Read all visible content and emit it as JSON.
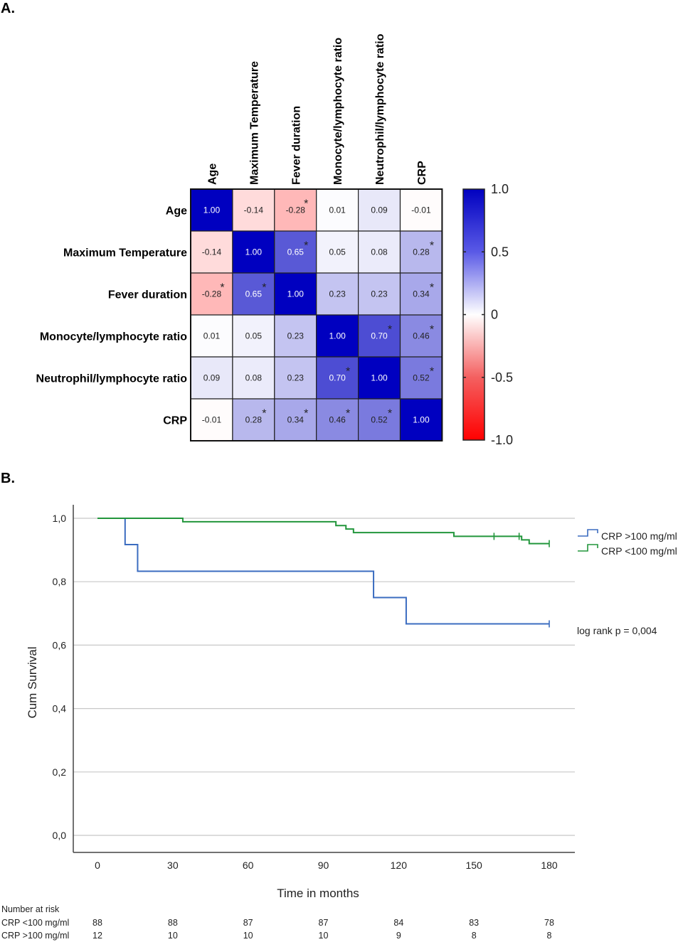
{
  "panels": {
    "a_label": "A.",
    "b_label": "B."
  },
  "chart_data": [
    {
      "type": "heatmap",
      "title": "",
      "variables": [
        "Age",
        "Maximum Temperature",
        "Fever duration",
        "Monocyte/lymphocyte ratio",
        "Neutrophil/lymphocyte ratio",
        "CRP"
      ],
      "values": [
        [
          1.0,
          -0.14,
          -0.28,
          0.01,
          0.09,
          -0.01
        ],
        [
          -0.14,
          1.0,
          0.65,
          0.05,
          0.08,
          0.28
        ],
        [
          -0.28,
          0.65,
          1.0,
          0.23,
          0.23,
          0.34
        ],
        [
          0.01,
          0.05,
          0.23,
          1.0,
          0.7,
          0.46
        ],
        [
          0.09,
          0.08,
          0.23,
          0.7,
          1.0,
          0.52
        ],
        [
          -0.01,
          0.28,
          0.34,
          0.46,
          0.52,
          1.0
        ]
      ],
      "labels": [
        [
          "1.00",
          "-0.14",
          "-0.28",
          "0.01",
          "0.09",
          "-0.01"
        ],
        [
          "-0.14",
          "1.00",
          "0.65",
          "0.05",
          "0.08",
          "0.28"
        ],
        [
          "-0.28",
          "0.65",
          "1.00",
          "0.23",
          "0.23",
          "0.34"
        ],
        [
          "0.01",
          "0.05",
          "0.23",
          "1.00",
          "0.70",
          "0.46"
        ],
        [
          "0.09",
          "0.08",
          "0.23",
          "0.70",
          "1.00",
          "0.52"
        ],
        [
          "-0.01",
          "0.28",
          "0.34",
          "0.46",
          "0.52",
          "1.00"
        ]
      ],
      "significant": [
        [
          false,
          false,
          true,
          false,
          false,
          false
        ],
        [
          false,
          false,
          true,
          false,
          false,
          true
        ],
        [
          true,
          true,
          false,
          false,
          false,
          true
        ],
        [
          false,
          false,
          false,
          false,
          true,
          true
        ],
        [
          false,
          false,
          false,
          true,
          false,
          true
        ],
        [
          false,
          true,
          true,
          true,
          true,
          false
        ]
      ],
      "significance_marker": "*",
      "colorbar": {
        "range": [
          -1.0,
          1.0
        ],
        "ticks": [
          1.0,
          0.5,
          0,
          -0.5,
          -1.0
        ],
        "tick_labels": [
          "1.0",
          "0.5",
          "0",
          "-0.5",
          "-1.0"
        ],
        "colors": {
          "min": "#ff0000",
          "mid": "#ffffff",
          "max": "#0000c0"
        }
      }
    },
    {
      "type": "line",
      "subtype": "kaplan-meier",
      "title": "",
      "xlabel": "Time in months",
      "ylabel": "Cum Survival",
      "xlim": [
        0,
        180
      ],
      "ylim": [
        0,
        1
      ],
      "xticks": [
        0,
        30,
        60,
        90,
        120,
        150,
        180
      ],
      "xtick_labels": [
        "0",
        "30",
        "60",
        "90",
        "120",
        "150",
        "180"
      ],
      "yticks": [
        0,
        0.2,
        0.4,
        0.6,
        0.8,
        1.0
      ],
      "ytick_labels": [
        "0,0",
        "0,2",
        "0,4",
        "0,6",
        "0,8",
        "1,0"
      ],
      "grid": "horizontal",
      "legend_position": "top-right",
      "annotation": "log rank p = 0,004",
      "series": [
        {
          "name": "CRP >100 mg/ml",
          "color": "#3b6cc0",
          "steps": [
            [
              0,
              1.0
            ],
            [
              11,
              0.917
            ],
            [
              16,
              0.833
            ],
            [
              110,
              0.75
            ],
            [
              123,
              0.667
            ]
          ],
          "end": 180,
          "censored": [
            [
              180,
              0.667
            ]
          ]
        },
        {
          "name": "CRP <100 mg/ml",
          "color": "#22963c",
          "steps": [
            [
              0,
              1.0
            ],
            [
              34,
              0.989
            ],
            [
              95,
              0.977
            ],
            [
              99,
              0.966
            ],
            [
              102,
              0.955
            ],
            [
              142,
              0.943
            ],
            [
              169,
              0.932
            ],
            [
              172,
              0.92
            ]
          ],
          "end": 180,
          "censored": [
            [
              158,
              0.943
            ],
            [
              168,
              0.943
            ],
            [
              180,
              0.92
            ]
          ]
        }
      ],
      "number_at_risk": {
        "title": "Number at risk",
        "times": [
          0,
          30,
          60,
          90,
          120,
          150,
          180
        ],
        "rows": [
          {
            "label": "CRP <100 mg/ml",
            "values": [
              "88",
              "88",
              "87",
              "87",
              "84",
              "83",
              "78"
            ]
          },
          {
            "label": "CRP >100 mg/ml",
            "values": [
              "12",
              "10",
              "10",
              "10",
              "9",
              "8",
              "8"
            ]
          }
        ]
      }
    }
  ]
}
